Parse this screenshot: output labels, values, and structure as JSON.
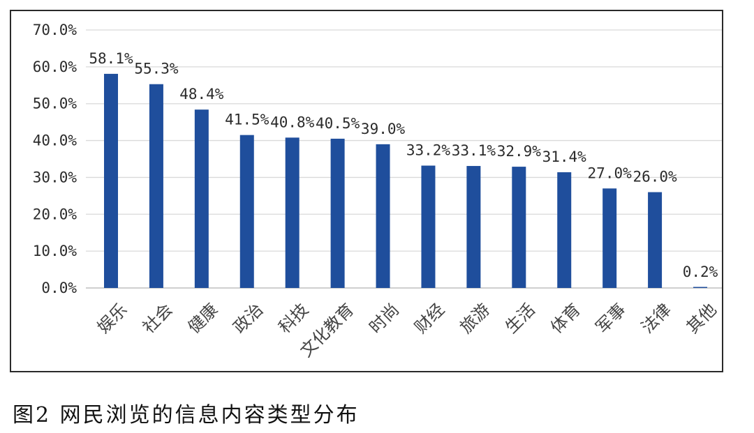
{
  "chart_data": {
    "type": "bar",
    "categories": [
      "娱乐",
      "社会",
      "健康",
      "政治",
      "科技",
      "文化教育",
      "时尚",
      "财经",
      "旅游",
      "生活",
      "体育",
      "军事",
      "法律",
      "其他"
    ],
    "values": [
      58.1,
      55.3,
      48.4,
      41.5,
      40.8,
      40.5,
      39.0,
      33.2,
      33.1,
      32.9,
      31.4,
      27.0,
      26.0,
      0.2
    ],
    "data_labels": [
      "58.1%",
      "55.3%",
      "48.4%",
      "41.5%",
      "40.8%",
      "40.5%",
      "39.0%",
      "33.2%",
      "33.1%",
      "32.9%",
      "31.4%",
      "27.0%",
      "26.0%",
      "0.2%"
    ],
    "y_ticks": [
      0,
      10,
      20,
      30,
      40,
      50,
      60,
      70
    ],
    "y_tick_labels": [
      "0.0%",
      "10.0%",
      "20.0%",
      "30.0%",
      "40.0%",
      "50.0%",
      "60.0%",
      "70.0%"
    ],
    "ylim": [
      0,
      70
    ],
    "grid": true,
    "legend": "none",
    "bar_color": "#1f4e9c"
  },
  "caption": "图2  网民浏览的信息内容类型分布"
}
